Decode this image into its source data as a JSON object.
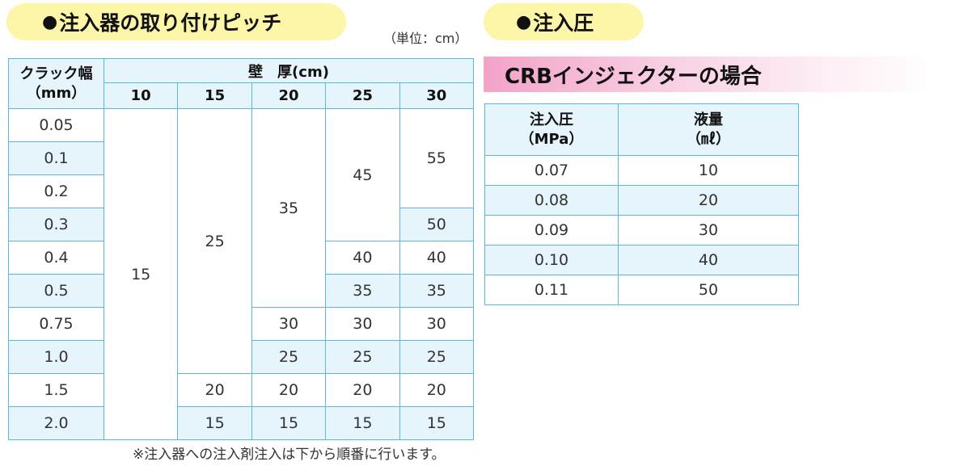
{
  "section1": {
    "title": "注入器の取り付けピッチ",
    "unit": "（単位：cm）"
  },
  "section2": {
    "title": "注入圧",
    "banner": "CRBインジェクターの場合"
  },
  "bullet": "●",
  "pitch_table": {
    "crack_header": "クラック幅",
    "crack_unit": "（mm）",
    "wall_header": "壁　厚(cm)",
    "wall_columns": [
      "10",
      "15",
      "20",
      "25",
      "30"
    ],
    "crack_values": [
      "0.05",
      "0.1",
      "0.2",
      "0.3",
      "0.4",
      "0.5",
      "0.75",
      "1.0",
      "1.5",
      "2.0"
    ],
    "cells": {
      "w10": "15",
      "w15_a": "25",
      "w15_b": "20",
      "w15_c": "15",
      "w20_a": "35",
      "w20_b": "30",
      "w20_c": "25",
      "w20_d": "20",
      "w20_e": "15",
      "w25_a": "45",
      "w25_b": "40",
      "w25_c": "35",
      "w25_d": "30",
      "w25_e": "25",
      "w25_f": "20",
      "w25_g": "15",
      "w30_a": "55",
      "w30_b": "50",
      "w30_c": "40",
      "w30_d": "35",
      "w30_e": "30",
      "w30_f": "25",
      "w30_g": "20",
      "w30_h": "15"
    },
    "note": "※注入器への注入剤注入は下から順番に行います。"
  },
  "pressure_table": {
    "headers": [
      {
        "name": "注入圧",
        "unit": "（MPa）"
      },
      {
        "name": "液量",
        "unit": "（㎖）"
      }
    ],
    "rows": [
      {
        "pressure": "0.07",
        "volume": "10"
      },
      {
        "pressure": "0.08",
        "volume": "20"
      },
      {
        "pressure": "0.09",
        "volume": "30"
      },
      {
        "pressure": "0.10",
        "volume": "40"
      },
      {
        "pressure": "0.11",
        "volume": "50"
      }
    ]
  },
  "colors": {
    "heading_pill": "#fdf6a8",
    "table_border": "#5ab8de",
    "row_shade": "#e6f4fb",
    "banner_pink": "#f3a3c8"
  }
}
